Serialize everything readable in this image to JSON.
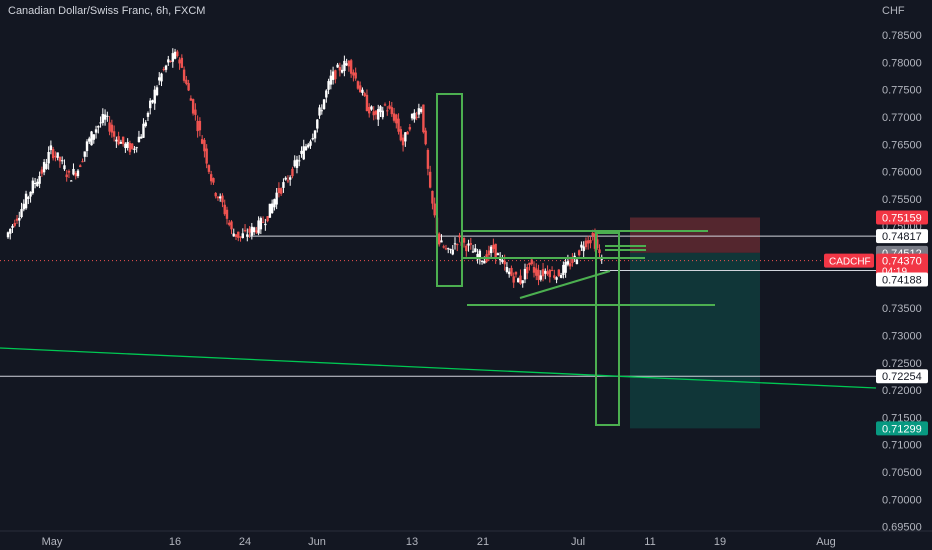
{
  "header": {
    "symbol_title": "Canadian Dollar/Swiss Franc, 6h, FXCM",
    "currency": "CHF"
  },
  "colors": {
    "background": "#131722",
    "up": "#ffffff",
    "down": "#ef5350",
    "green_lines": "#4caf50",
    "bright_green": "#00c853",
    "stop_zone": "#6b2c33",
    "target_zone": "#113a3b",
    "axis_text": "#b2b5be"
  },
  "badges": {
    "stop": "0.75159",
    "upper_level": "0.74817",
    "entry": "0.74512",
    "current": "0.74370",
    "countdown": "04:19",
    "lower_level": "0.74188",
    "support": "0.72254",
    "target": "0.71299",
    "symbol": "CADCHF"
  },
  "chart_data": {
    "type": "candlestick",
    "title": "Canadian Dollar/Swiss Franc, 6h, FXCM",
    "ylabel": "CHF",
    "ylim": [
      0.6946,
      0.7877
    ],
    "y_ticks": [
      "0.78500",
      "0.78000",
      "0.77500",
      "0.77000",
      "0.76500",
      "0.76000",
      "0.75500",
      "0.75000",
      "0.74500",
      "0.74000",
      "0.73500",
      "0.73000",
      "0.72500",
      "0.72000",
      "0.71500",
      "0.71000",
      "0.70500",
      "0.70000",
      "0.69500"
    ],
    "x_ticks": [
      "May",
      "16",
      "24",
      "Jun",
      "13",
      "21",
      "Jul",
      "11",
      "19",
      "Aug"
    ],
    "last_price": 0.7437,
    "price_path": [
      0.748,
      0.751,
      0.754,
      0.7575,
      0.76,
      0.764,
      0.762,
      0.759,
      0.7605,
      0.765,
      0.768,
      0.77,
      0.7665,
      0.765,
      0.764,
      0.767,
      0.772,
      0.777,
      0.78,
      0.7815,
      0.776,
      0.77,
      0.764,
      0.757,
      0.754,
      0.749,
      0.748,
      0.749,
      0.75,
      0.752,
      0.756,
      0.758,
      0.761,
      0.764,
      0.767,
      0.772,
      0.777,
      0.779,
      0.78,
      0.776,
      0.772,
      0.77,
      0.772,
      0.77,
      0.765,
      0.77,
      0.772,
      0.756,
      0.747,
      0.745,
      0.7475,
      0.7465,
      0.745,
      0.744,
      0.746,
      0.743,
      0.741,
      0.74,
      0.743,
      0.741,
      0.742,
      0.741,
      0.7425,
      0.744,
      0.747,
      0.748,
      0.7437
    ],
    "levels": [
      {
        "name": "upper_level",
        "value": 0.74817
      },
      {
        "name": "entry",
        "value": 0.74512
      },
      {
        "name": "lower_level",
        "value": 0.74188
      },
      {
        "name": "support",
        "value": 0.72254
      }
    ],
    "position": {
      "stop": 0.75159,
      "target": 0.71299
    },
    "grid": false
  }
}
